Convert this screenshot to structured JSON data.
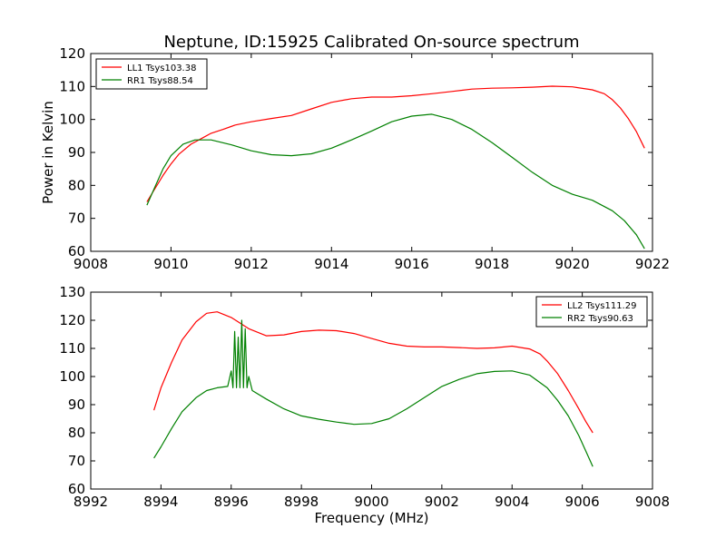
{
  "chart_data": [
    {
      "type": "line",
      "title": "Neptune, ID:15925 Calibrated On-source spectrum",
      "xlabel": "",
      "ylabel": "Power in Kelvin",
      "xlim": [
        9008,
        9022
      ],
      "ylim": [
        60,
        120
      ],
      "xticks": [
        "9008",
        "9010",
        "9012",
        "9014",
        "9016",
        "9018",
        "9020",
        "9022"
      ],
      "yticks": [
        "60",
        "70",
        "80",
        "90",
        "100",
        "110",
        "120"
      ],
      "legend_position": "top-left",
      "series": [
        {
          "name": "LL1 Tsys103.38",
          "color": "#ff0000",
          "x": [
            9009.4,
            9009.6,
            9009.8,
            9010.0,
            9010.2,
            9010.5,
            9010.8,
            9011.0,
            9011.3,
            9011.6,
            9012.0,
            9012.5,
            9013.0,
            9013.5,
            9014.0,
            9014.5,
            9015.0,
            9015.5,
            9016.0,
            9016.5,
            9017.0,
            9017.5,
            9018.0,
            9018.5,
            9019.0,
            9019.5,
            9020.0,
            9020.5,
            9020.8,
            9021.0,
            9021.2,
            9021.4,
            9021.6,
            9021.8
          ],
          "y": [
            75,
            79,
            83,
            86.5,
            89.5,
            92.5,
            94.5,
            95.8,
            97,
            98.3,
            99.3,
            100.3,
            101.2,
            103.2,
            105.2,
            106.3,
            106.8,
            106.8,
            107.2,
            107.8,
            108.5,
            109.2,
            109.5,
            109.6,
            109.8,
            110.1,
            109.9,
            109,
            107.8,
            106,
            103.5,
            100.2,
            96.3,
            91.3
          ]
        },
        {
          "name": "RR1 Tsys88.54",
          "color": "#008000",
          "x": [
            9009.4,
            9009.6,
            9009.8,
            9010.0,
            9010.3,
            9010.6,
            9011.0,
            9011.5,
            9012.0,
            9012.5,
            9013.0,
            9013.5,
            9014.0,
            9014.5,
            9015.0,
            9015.5,
            9016.0,
            9016.5,
            9017.0,
            9017.5,
            9018.0,
            9018.5,
            9019.0,
            9019.5,
            9020.0,
            9020.5,
            9021.0,
            9021.3,
            9021.6,
            9021.8
          ],
          "y": [
            74,
            79.5,
            85,
            89,
            92.5,
            93.8,
            93.8,
            92.3,
            90.5,
            89.3,
            89.0,
            89.6,
            91.3,
            93.8,
            96.5,
            99.3,
            101,
            101.6,
            100,
            97,
            93,
            88.5,
            84,
            80,
            77.3,
            75.5,
            72.3,
            69.3,
            65,
            60.8
          ]
        }
      ]
    },
    {
      "type": "line",
      "title": "",
      "xlabel": "Frequency (MHz)",
      "ylabel": "",
      "xlim": [
        8992,
        9008
      ],
      "ylim": [
        60,
        130
      ],
      "xticks": [
        "8992",
        "8994",
        "8996",
        "8998",
        "9000",
        "9002",
        "9004",
        "9006",
        "9008"
      ],
      "yticks": [
        "60",
        "70",
        "80",
        "90",
        "100",
        "110",
        "120",
        "130"
      ],
      "legend_position": "top-right",
      "series": [
        {
          "name": "LL2 Tsys111.29",
          "color": "#ff0000",
          "x": [
            8993.8,
            8994.0,
            8994.3,
            8994.6,
            8995.0,
            8995.3,
            8995.6,
            8996.0,
            8996.5,
            8997.0,
            8997.5,
            8998.0,
            8998.5,
            8999.0,
            8999.5,
            9000.0,
            9000.5,
            9001.0,
            9001.5,
            9002.0,
            9002.5,
            9003.0,
            9003.5,
            9004.0,
            9004.5,
            9004.8,
            9005.0,
            9005.3,
            9005.6,
            9005.9,
            9006.1,
            9006.3
          ],
          "y": [
            88,
            96,
            105,
            113,
            119.5,
            122.5,
            123,
            121,
            117,
            114.5,
            114.8,
            116,
            116.5,
            116.3,
            115.3,
            113.5,
            111.8,
            110.8,
            110.5,
            110.5,
            110.3,
            110.0,
            110.2,
            110.8,
            109.8,
            108,
            105.5,
            101,
            95,
            88.5,
            84,
            80
          ]
        },
        {
          "name": "RR2 Tsys90.63",
          "color": "#008000",
          "x": [
            8993.8,
            8994.0,
            8994.3,
            8994.6,
            8995.0,
            8995.3,
            8995.6,
            8995.9,
            8996.0,
            8996.05,
            8996.1,
            8996.15,
            8996.2,
            8996.25,
            8996.3,
            8996.35,
            8996.4,
            8996.45,
            8996.5,
            8996.6,
            8997.0,
            8997.5,
            8998.0,
            8998.5,
            8999.0,
            8999.5,
            9000.0,
            9000.5,
            9001.0,
            9001.5,
            9002.0,
            9002.5,
            9003.0,
            9003.5,
            9004.0,
            9004.5,
            9005.0,
            9005.3,
            9005.6,
            9005.9,
            9006.1,
            9006.3
          ],
          "y": [
            71,
            75,
            81.5,
            87.5,
            92.5,
            95,
            96,
            96.5,
            102,
            96,
            116,
            96,
            114,
            96,
            120,
            96,
            117,
            96,
            100,
            95,
            92,
            88.5,
            86,
            84.8,
            83.8,
            83.0,
            83.3,
            85,
            88.5,
            92.5,
            96.5,
            99,
            101,
            101.8,
            102,
            100.5,
            96,
            91.5,
            86,
            79,
            73.5,
            68
          ]
        }
      ]
    }
  ]
}
